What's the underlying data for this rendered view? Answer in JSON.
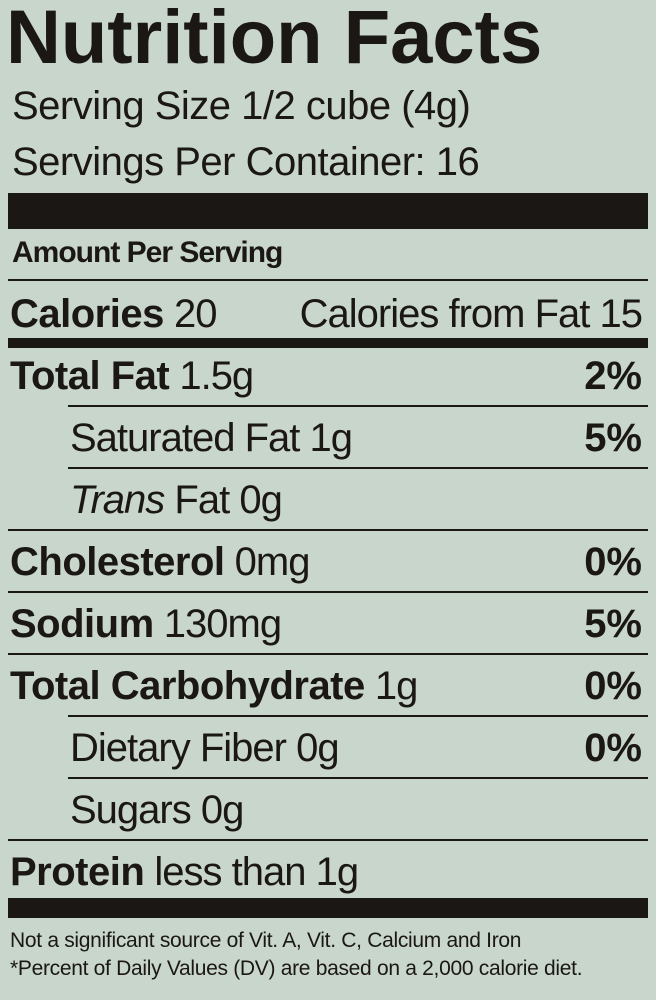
{
  "title": "Nutrition Facts",
  "serving_size": "Serving Size 1/2 cube (4g)",
  "servings_per_container": "Servings Per Container: 16",
  "amount_per_serving": "Amount Per Serving",
  "calories": {
    "label": "Calories",
    "value": "20",
    "from_fat": "Calories from Fat 15"
  },
  "nutrients": [
    {
      "label": "Total Fat",
      "amount": "1.5g",
      "dv": "2%"
    },
    {
      "label": "Saturated Fat",
      "amount": "1g",
      "dv": "5%"
    },
    {
      "label_italic": "Trans",
      "label": "Fat",
      "amount": "0g",
      "dv": ""
    },
    {
      "label": "Cholesterol",
      "amount": "0mg",
      "dv": "0%"
    },
    {
      "label": "Sodium",
      "amount": "130mg",
      "dv": "5%"
    },
    {
      "label": "Total Carbohydrate",
      "amount": "1g",
      "dv": "0%"
    },
    {
      "label": "Dietary Fiber",
      "amount": "0g",
      "dv": "0%"
    },
    {
      "label": "Sugars",
      "amount": "0g",
      "dv": ""
    },
    {
      "label": "Protein",
      "amount": "less than 1g",
      "dv": ""
    }
  ],
  "footnotes": [
    "Not a significant source of Vit. A, Vit. C, Calcium and Iron",
    "*Percent of Daily Values (DV) are based on a 2,000 calorie diet."
  ],
  "colors": {
    "background": "#c9d6cc",
    "ink": "#1a1714"
  }
}
